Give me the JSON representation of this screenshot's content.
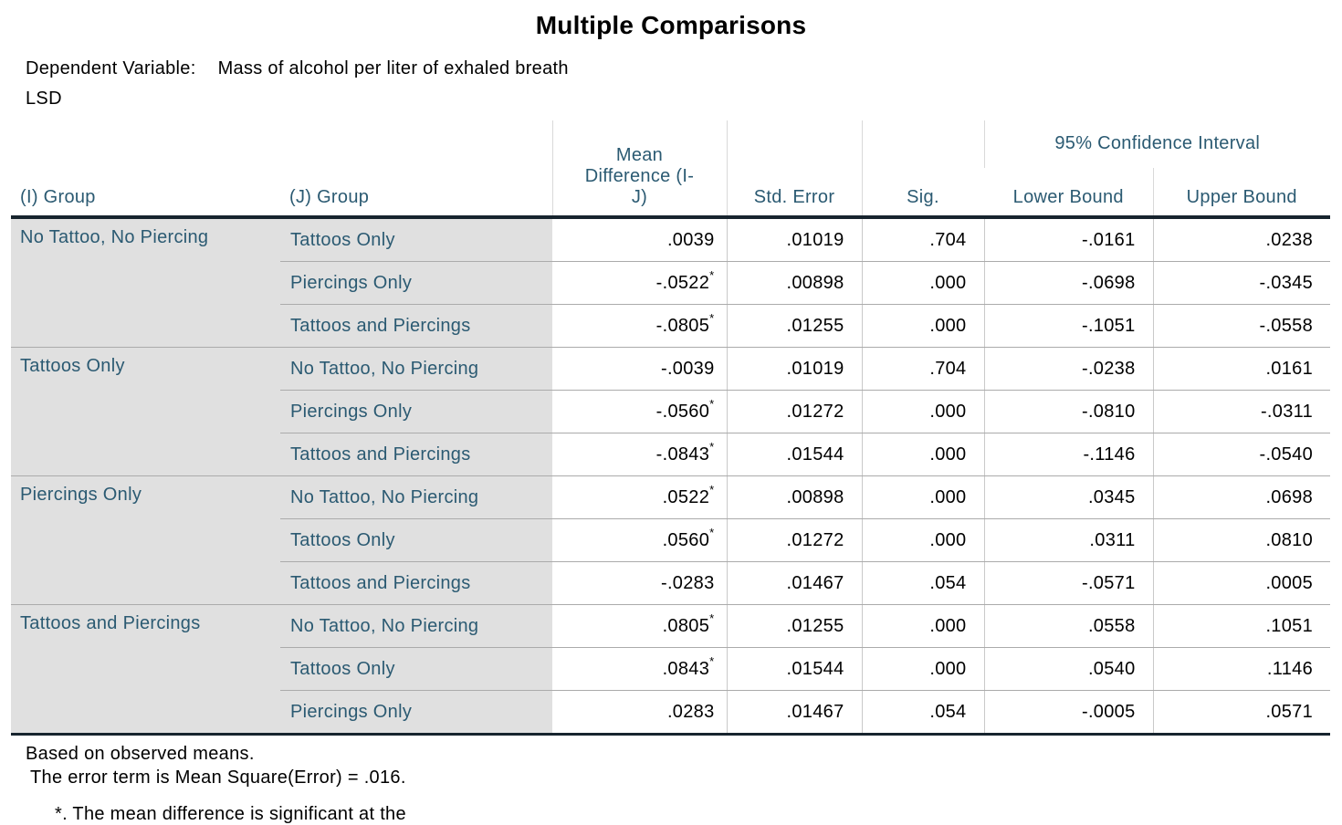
{
  "colors": {
    "header_text": "#2b5a72",
    "row_band": "#e0e0e0",
    "heavy_rule": "#17242e",
    "row_rule": "#ababab",
    "column_rule": "#c9c9c9",
    "header_column_rule": "#d9d9d9"
  },
  "chart_data": {
    "type": "table",
    "title": "Multiple Comparisons",
    "dependent_variable_label": "Dependent Variable:",
    "dependent_variable": "Mass of alcohol per liter of exhaled breath",
    "method": "LSD",
    "headers": {
      "i_group": "(I) Group",
      "j_group": "(J) Group",
      "mean_diff_lines": [
        "Mean",
        "Difference (I-",
        "J)"
      ],
      "mean_diff": "Mean Difference (I-J)",
      "std_error": "Std. Error",
      "sig": "Sig.",
      "ci": "95% Confidence Interval",
      "lower": "Lower Bound",
      "upper": "Upper Bound"
    },
    "groups": [
      {
        "i": "No Tattoo, No Piercing",
        "rows": [
          {
            "j": "Tattoos Only",
            "md": ".0039",
            "star": "",
            "se": ".01019",
            "sig": ".704",
            "lb": "-.0161",
            "ub": ".0238"
          },
          {
            "j": "Piercings Only",
            "md": "-.0522",
            "star": "*",
            "se": ".00898",
            "sig": ".000",
            "lb": "-.0698",
            "ub": "-.0345"
          },
          {
            "j": "Tattoos and Piercings",
            "md": "-.0805",
            "star": "*",
            "se": ".01255",
            "sig": ".000",
            "lb": "-.1051",
            "ub": "-.0558"
          }
        ]
      },
      {
        "i": "Tattoos Only",
        "rows": [
          {
            "j": "No Tattoo, No Piercing",
            "md": "-.0039",
            "star": "",
            "se": ".01019",
            "sig": ".704",
            "lb": "-.0238",
            "ub": ".0161"
          },
          {
            "j": "Piercings Only",
            "md": "-.0560",
            "star": "*",
            "se": ".01272",
            "sig": ".000",
            "lb": "-.0810",
            "ub": "-.0311"
          },
          {
            "j": "Tattoos and Piercings",
            "md": "-.0843",
            "star": "*",
            "se": ".01544",
            "sig": ".000",
            "lb": "-.1146",
            "ub": "-.0540"
          }
        ]
      },
      {
        "i": "Piercings Only",
        "rows": [
          {
            "j": "No Tattoo, No Piercing",
            "md": ".0522",
            "star": "*",
            "se": ".00898",
            "sig": ".000",
            "lb": ".0345",
            "ub": ".0698"
          },
          {
            "j": "Tattoos Only",
            "md": ".0560",
            "star": "*",
            "se": ".01272",
            "sig": ".000",
            "lb": ".0311",
            "ub": ".0810"
          },
          {
            "j": "Tattoos and Piercings",
            "md": "-.0283",
            "star": "",
            "se": ".01467",
            "sig": ".054",
            "lb": "-.0571",
            "ub": ".0005"
          }
        ]
      },
      {
        "i": "Tattoos and Piercings",
        "rows": [
          {
            "j": "No Tattoo, No Piercing",
            "md": ".0805",
            "star": "*",
            "se": ".01255",
            "sig": ".000",
            "lb": ".0558",
            "ub": ".1051"
          },
          {
            "j": "Tattoos Only",
            "md": ".0843",
            "star": "*",
            "se": ".01544",
            "sig": ".000",
            "lb": ".0540",
            "ub": ".1146"
          },
          {
            "j": "Piercings Only",
            "md": ".0283",
            "star": "",
            "se": ".01467",
            "sig": ".054",
            "lb": "-.0005",
            "ub": ".0571"
          }
        ]
      }
    ],
    "footnotes": {
      "based": "Based on observed means.",
      "error_term": "The error term is Mean Square(Error) = .016.",
      "significance": "*. The mean difference is significant at the"
    }
  }
}
